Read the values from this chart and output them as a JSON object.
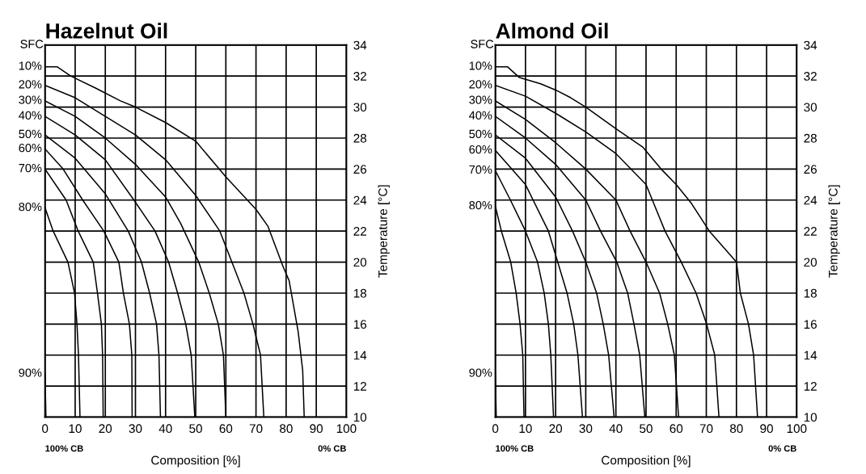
{
  "chart_data": [
    {
      "type": "line",
      "title": "Hazelnut Oil",
      "xlabel": "Composition [%]",
      "ylabel": "Temperature [°C]",
      "annotations": [
        "SFC",
        "100% CB",
        "0% CB"
      ],
      "xlim": [
        0,
        100
      ],
      "ylim": [
        10,
        34
      ],
      "xticks": [
        0,
        10,
        20,
        30,
        40,
        50,
        60,
        70,
        80,
        90,
        100
      ],
      "yticks": [
        10,
        12,
        14,
        16,
        18,
        20,
        22,
        24,
        26,
        28,
        30,
        32,
        34
      ],
      "grid": true,
      "marker": "none",
      "line_style": "solid",
      "series": [
        {
          "name": "10%",
          "color": "#000000",
          "x": [
            0,
            4,
            8.5,
            17,
            25,
            30,
            40,
            50,
            60,
            70,
            74,
            79,
            81,
            84,
            85.5,
            86
          ],
          "values": [
            32.6,
            32.6,
            32,
            31.2,
            30.4,
            30,
            29,
            27.8,
            25.5,
            23.4,
            22.3,
            19.7,
            18.8,
            15.5,
            13,
            10
          ]
        },
        {
          "name": "20%",
          "color": "#000000",
          "x": [
            0,
            10,
            20,
            30,
            40,
            50,
            58,
            62,
            66,
            69,
            71.5,
            72.6
          ],
          "values": [
            31.4,
            30.6,
            29.4,
            28.2,
            26.6,
            24.3,
            22,
            20,
            18,
            16,
            14,
            10
          ]
        },
        {
          "name": "30%",
          "color": "#000000",
          "x": [
            0,
            10,
            20,
            30,
            40,
            45,
            51,
            54.5,
            57.5,
            59.2,
            60
          ],
          "values": [
            30.4,
            29.4,
            28,
            26.3,
            24.2,
            22.5,
            20,
            18,
            16,
            14,
            10
          ]
        },
        {
          "name": "40%",
          "color": "#000000",
          "x": [
            0,
            10,
            20,
            29.5,
            36.5,
            41,
            44,
            46.7,
            48.5,
            49.7
          ],
          "values": [
            29.4,
            28.2,
            26.6,
            24,
            22,
            20,
            18,
            16,
            14,
            10
          ]
        },
        {
          "name": "50%",
          "color": "#000000",
          "x": [
            0,
            10,
            20,
            27.6,
            32,
            34.7,
            37,
            37.8,
            38.3
          ],
          "values": [
            28.2,
            26.7,
            24.4,
            22,
            20,
            18,
            16,
            14,
            10
          ]
        },
        {
          "name": "60%",
          "color": "#000000",
          "x": [
            0,
            6,
            12.5,
            19.5,
            24.5,
            26,
            28,
            28.8,
            28.9
          ],
          "values": [
            27.3,
            26,
            24,
            22,
            20,
            18,
            16,
            14,
            10
          ]
        },
        {
          "name": "70%",
          "color": "#000000",
          "x": [
            0,
            7,
            11,
            16,
            17.4,
            18.7,
            19.1,
            19.3
          ],
          "values": [
            26,
            24,
            22,
            20,
            18,
            16,
            14,
            10
          ]
        },
        {
          "name": "80%",
          "color": "#000000",
          "x": [
            0,
            2.7,
            7.6,
            9.8,
            10.6,
            11.1,
            11.6
          ],
          "values": [
            23.5,
            22,
            20,
            18,
            16,
            14,
            10
          ]
        },
        {
          "name": "90%",
          "color": "#000000",
          "x": [
            0,
            0.3
          ],
          "values": [
            12.8,
            10
          ]
        }
      ]
    },
    {
      "type": "line",
      "title": "Almond Oil",
      "xlabel": "Composition [%]",
      "ylabel": "Temperature [°C]",
      "annotations": [
        "SFC",
        "100% CB",
        "0% CB"
      ],
      "xlim": [
        0,
        100
      ],
      "ylim": [
        10,
        34
      ],
      "xticks": [
        0,
        10,
        20,
        30,
        40,
        50,
        60,
        70,
        80,
        90,
        100
      ],
      "yticks": [
        10,
        12,
        14,
        16,
        18,
        20,
        22,
        24,
        26,
        28,
        30,
        32,
        34
      ],
      "grid": true,
      "marker": "none",
      "line_style": "solid",
      "series": [
        {
          "name": "10%",
          "color": "#000000",
          "x": [
            0,
            4,
            8,
            15,
            20,
            25,
            30,
            40,
            49,
            55,
            60,
            65,
            71,
            80,
            81.3,
            84,
            85.7,
            87
          ],
          "values": [
            32.6,
            32.6,
            31.9,
            31.5,
            31.1,
            30.6,
            30,
            28.6,
            27.4,
            26,
            25,
            23.8,
            22,
            20,
            18,
            16,
            14,
            10
          ]
        },
        {
          "name": "20%",
          "color": "#000000",
          "x": [
            0,
            10,
            20,
            30,
            40,
            50,
            56.3,
            61.7,
            66.6,
            70.1,
            72.8,
            74.2
          ],
          "values": [
            31.4,
            30.7,
            29.6,
            28.4,
            27,
            25,
            22,
            20,
            18,
            16,
            14,
            10
          ]
        },
        {
          "name": "30%",
          "color": "#000000",
          "x": [
            0,
            10,
            20,
            30,
            40,
            44.7,
            50,
            54.5,
            57.2,
            59.4,
            60.8
          ],
          "values": [
            30.4,
            29.2,
            27.7,
            26,
            24,
            22,
            20,
            18,
            16,
            14,
            10
          ]
        },
        {
          "name": "40%",
          "color": "#000000",
          "x": [
            0,
            10,
            20,
            30,
            34.9,
            40.3,
            43.9,
            46,
            47.9,
            49.6
          ],
          "values": [
            29.4,
            28,
            26.3,
            24,
            22,
            20,
            18,
            16,
            14,
            10
          ]
        },
        {
          "name": "50%",
          "color": "#000000",
          "x": [
            0,
            10,
            20,
            25.6,
            30,
            33.6,
            35.8,
            37.6,
            39.4
          ],
          "values": [
            28.2,
            26.7,
            24.2,
            22,
            20,
            18,
            16,
            14,
            10
          ]
        },
        {
          "name": "60%",
          "color": "#000000",
          "x": [
            0,
            10,
            17.6,
            20.7,
            23.8,
            26,
            27.4,
            28.9
          ],
          "values": [
            27.2,
            25,
            22,
            20,
            18,
            16,
            14,
            10
          ]
        },
        {
          "name": "70%",
          "color": "#000000",
          "x": [
            0,
            5,
            10,
            14,
            16.2,
            17.6,
            18.4,
            19.3
          ],
          "values": [
            25.9,
            24,
            22,
            20,
            18,
            16,
            14,
            10
          ]
        },
        {
          "name": "80%",
          "color": "#000000",
          "x": [
            0,
            2,
            5.1,
            6.9,
            8.2,
            9.1,
            9.5
          ],
          "values": [
            23.6,
            22,
            20,
            18,
            16,
            14,
            10
          ]
        },
        {
          "name": "90%",
          "color": "#000000",
          "x": [
            0,
            0.3
          ],
          "values": [
            12.8,
            10
          ]
        }
      ]
    }
  ]
}
